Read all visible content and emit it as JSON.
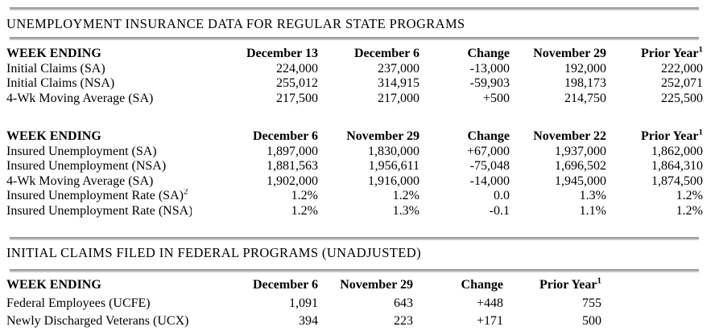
{
  "titles": {
    "state_programs": "UNEMPLOYMENT INSURANCE DATA FOR REGULAR STATE PROGRAMS",
    "federal_programs": "INITIAL CLAIMS FILED IN FEDERAL PROGRAMS (UNADJUSTED)"
  },
  "tables": [
    {
      "name": "state-initial-claims",
      "header": [
        {
          "text": "WEEK ENDING"
        },
        {
          "text": "December 13"
        },
        {
          "text": "December 6"
        },
        {
          "text": "Change"
        },
        {
          "text": "November 29"
        },
        {
          "text": "Prior Year",
          "sup": "1"
        }
      ],
      "rows": [
        [
          {
            "text": "Initial Claims (SA)"
          },
          {
            "text": "224,000"
          },
          {
            "text": "237,000"
          },
          {
            "text": "-13,000"
          },
          {
            "text": "192,000"
          },
          {
            "text": "222,000"
          }
        ],
        [
          {
            "text": "Initial Claims (NSA)"
          },
          {
            "text": "255,012"
          },
          {
            "text": "314,915"
          },
          {
            "text": "-59,903"
          },
          {
            "text": "198,173"
          },
          {
            "text": "252,071"
          }
        ],
        [
          {
            "text": "4-Wk Moving Average (SA)"
          },
          {
            "text": "217,500"
          },
          {
            "text": "217,000"
          },
          {
            "text": "+500"
          },
          {
            "text": "214,750"
          },
          {
            "text": "225,500"
          }
        ]
      ]
    },
    {
      "name": "state-insured-unemployment",
      "header": [
        {
          "text": "WEEK ENDING"
        },
        {
          "text": "December 6"
        },
        {
          "text": "November 29"
        },
        {
          "text": "Change"
        },
        {
          "text": "November 22"
        },
        {
          "text": "Prior Year",
          "sup": "1"
        }
      ],
      "rows": [
        [
          {
            "text": "Insured Unemployment (SA)"
          },
          {
            "text": "1,897,000"
          },
          {
            "text": "1,830,000"
          },
          {
            "text": "+67,000"
          },
          {
            "text": "1,937,000"
          },
          {
            "text": "1,862,000"
          }
        ],
        [
          {
            "text": "Insured Unemployment (NSA)"
          },
          {
            "text": "1,881,563"
          },
          {
            "text": "1,956,611"
          },
          {
            "text": "-75,048"
          },
          {
            "text": "1,696,502"
          },
          {
            "text": "1,864,310"
          }
        ],
        [
          {
            "text": "4-Wk Moving Average (SA)"
          },
          {
            "text": "1,902,000"
          },
          {
            "text": "1,916,000"
          },
          {
            "text": "-14,000"
          },
          {
            "text": "1,945,000"
          },
          {
            "text": "1,874,500"
          }
        ],
        [
          {
            "text": "Insured Unemployment Rate (SA)",
            "sup": "2"
          },
          {
            "text": "1.2%"
          },
          {
            "text": "1.2%"
          },
          {
            "text": "0.0"
          },
          {
            "text": "1.3%"
          },
          {
            "text": "1.2%"
          }
        ],
        [
          {
            "text": "Insured Unemployment Rate (NSA)",
            "sup": "2"
          },
          {
            "text": "1.2%"
          },
          {
            "text": "1.3%"
          },
          {
            "text": "-0.1"
          },
          {
            "text": "1.1%"
          },
          {
            "text": "1.2%"
          }
        ]
      ]
    },
    {
      "name": "federal-initial-claims",
      "header": [
        {
          "text": "WEEK ENDING"
        },
        {
          "text": "December 6"
        },
        {
          "text": "November 29"
        },
        {
          "text": "Change"
        },
        {
          "text": "Prior Year",
          "sup": "1"
        }
      ],
      "rows": [
        [
          {
            "text": "Federal Employees (UCFE)"
          },
          {
            "text": "1,091"
          },
          {
            "text": "643"
          },
          {
            "text": "+448"
          },
          {
            "text": "755"
          }
        ],
        [
          {
            "text": "Newly Discharged Veterans (UCX)"
          },
          {
            "text": "394"
          },
          {
            "text": "223"
          },
          {
            "text": "+171"
          },
          {
            "text": "500"
          }
        ]
      ]
    }
  ]
}
